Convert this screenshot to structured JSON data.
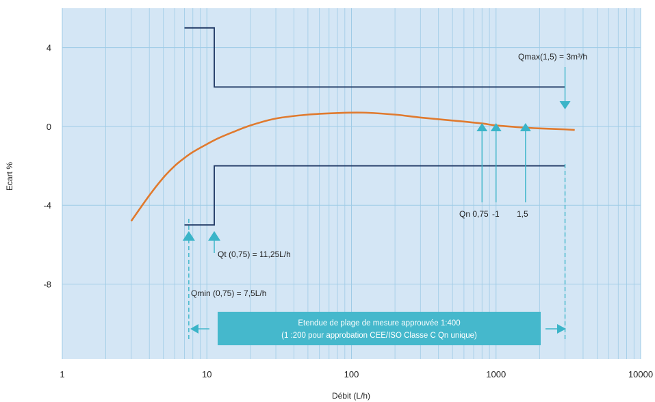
{
  "chart_data": {
    "type": "line",
    "xlabel": "Débit (L/h)",
    "ylabel": "Ecart %",
    "x_scale": "log",
    "xlim": [
      1,
      10000
    ],
    "ylim": [
      -11.8,
      6
    ],
    "xticks": [
      1,
      10,
      100,
      1000,
      10000
    ],
    "xtick_labels": [
      "1",
      "10",
      "100",
      "1000",
      "10000"
    ],
    "yticks": [
      4,
      0,
      -4,
      -8
    ],
    "ytick_labels": [
      "4",
      "0",
      "-4",
      "-8"
    ],
    "grid": true,
    "series": [
      {
        "x": [
          3,
          4,
          5,
          6,
          7,
          8,
          10,
          12,
          15,
          20,
          30,
          50,
          80,
          120,
          200,
          300,
          500,
          800,
          1000,
          1500,
          2000,
          3000,
          3500
        ],
        "y": [
          -4.8,
          -3.5,
          -2.6,
          -2.0,
          -1.6,
          -1.3,
          -0.9,
          -0.6,
          -0.3,
          0.05,
          0.4,
          0.6,
          0.68,
          0.7,
          0.6,
          0.45,
          0.3,
          0.15,
          0.05,
          -0.05,
          -0.1,
          -0.15,
          -0.18
        ]
      }
    ],
    "limit_upper": {
      "x": [
        7,
        11.25,
        11.25,
        3000
      ],
      "y": [
        5,
        5,
        2,
        2
      ]
    },
    "limit_lower": {
      "x": [
        7,
        11.25,
        11.25,
        3000
      ],
      "y": [
        -5,
        -5,
        -2,
        -2
      ]
    },
    "annotations": {
      "qmax": "Qmax(1,5) = 3m³/h",
      "qn_075": "Qn 0,75",
      "qn_1": "-1",
      "qn_15": "1,5",
      "qt": "Qt (0,75) = 11,25L/h",
      "qmin": "Qmin (0,75) = 7,5L/h"
    },
    "band": {
      "line1": "Etendue de plage de mesure approuvée 1:400",
      "line2": "(1 :200 pour approbation CEE/ISO Classe C Qn unique)"
    }
  },
  "colors": {
    "plot_bg": "#d4e6f5",
    "grid": "#9ecbe6",
    "curve": "#e07a2e",
    "limit": "#1f3864",
    "arrow": "#3ab4c8",
    "band": "#45b8cc"
  }
}
